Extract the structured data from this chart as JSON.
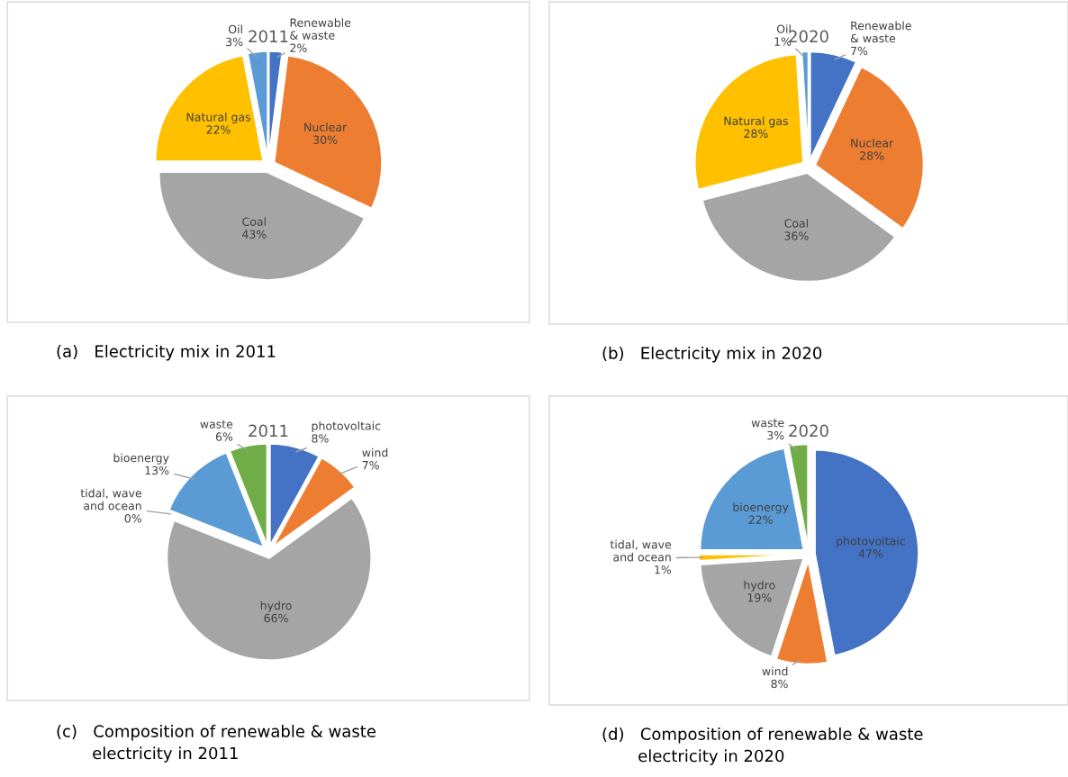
{
  "chart_data": [
    {
      "type": "pie",
      "title": "2011",
      "categories": [
        "Renewable\n& waste",
        "Nuclear",
        "Coal",
        "Natural gas",
        "Oil"
      ],
      "values": [
        2,
        30,
        43,
        22,
        3
      ],
      "value_labels": [
        "2%",
        "30%",
        "43%",
        "22%",
        "3%"
      ],
      "colors": [
        "#4472c4",
        "#ed7d31",
        "#a5a5a5",
        "#ffc000",
        "#5b9bd5"
      ],
      "annotations": [
        "(a)   Electricity mix in 2011"
      ]
    },
    {
      "type": "pie",
      "title": "2020",
      "categories": [
        "Renewable\n& waste",
        "Nuclear",
        "Coal",
        "Natural gas",
        "Oil"
      ],
      "values": [
        7,
        28,
        36,
        28,
        1
      ],
      "value_labels": [
        "7%",
        "28%",
        "36%",
        "28%",
        "1%"
      ],
      "colors": [
        "#4472c4",
        "#ed7d31",
        "#a5a5a5",
        "#ffc000",
        "#5b9bd5"
      ],
      "annotations": [
        "(b)   Electricity mix in 2020"
      ]
    },
    {
      "type": "pie",
      "title": "2011",
      "categories": [
        "photovoltaic",
        "wind",
        "hydro",
        "tidal, wave\nand ocean",
        "bioenergy",
        "waste"
      ],
      "values": [
        8,
        7,
        66,
        0,
        13,
        6
      ],
      "value_labels": [
        "8%",
        "7%",
        "66%",
        "0%",
        "13%",
        "6%"
      ],
      "colors": [
        "#4472c4",
        "#ed7d31",
        "#a5a5a5",
        "#ffc000",
        "#5b9bd5",
        "#70ad47"
      ],
      "annotations": [
        "(c)   Composition of renewable & waste\n       electricity in 2011"
      ]
    },
    {
      "type": "pie",
      "title": "2020",
      "categories": [
        "photovoltaic",
        "wind",
        "hydro",
        "tidal, wave\nand ocean",
        "bioenergy",
        "waste"
      ],
      "values": [
        47,
        8,
        19,
        1,
        22,
        3
      ],
      "value_labels": [
        "47%",
        "8%",
        "19%",
        "1%",
        "22%",
        "3%"
      ],
      "colors": [
        "#4472c4",
        "#ed7d31",
        "#a5a5a5",
        "#ffc000",
        "#5b9bd5",
        "#70ad47"
      ],
      "annotations": [
        "(d)   Composition of renewable & waste\n       electricity in 2020"
      ]
    }
  ]
}
